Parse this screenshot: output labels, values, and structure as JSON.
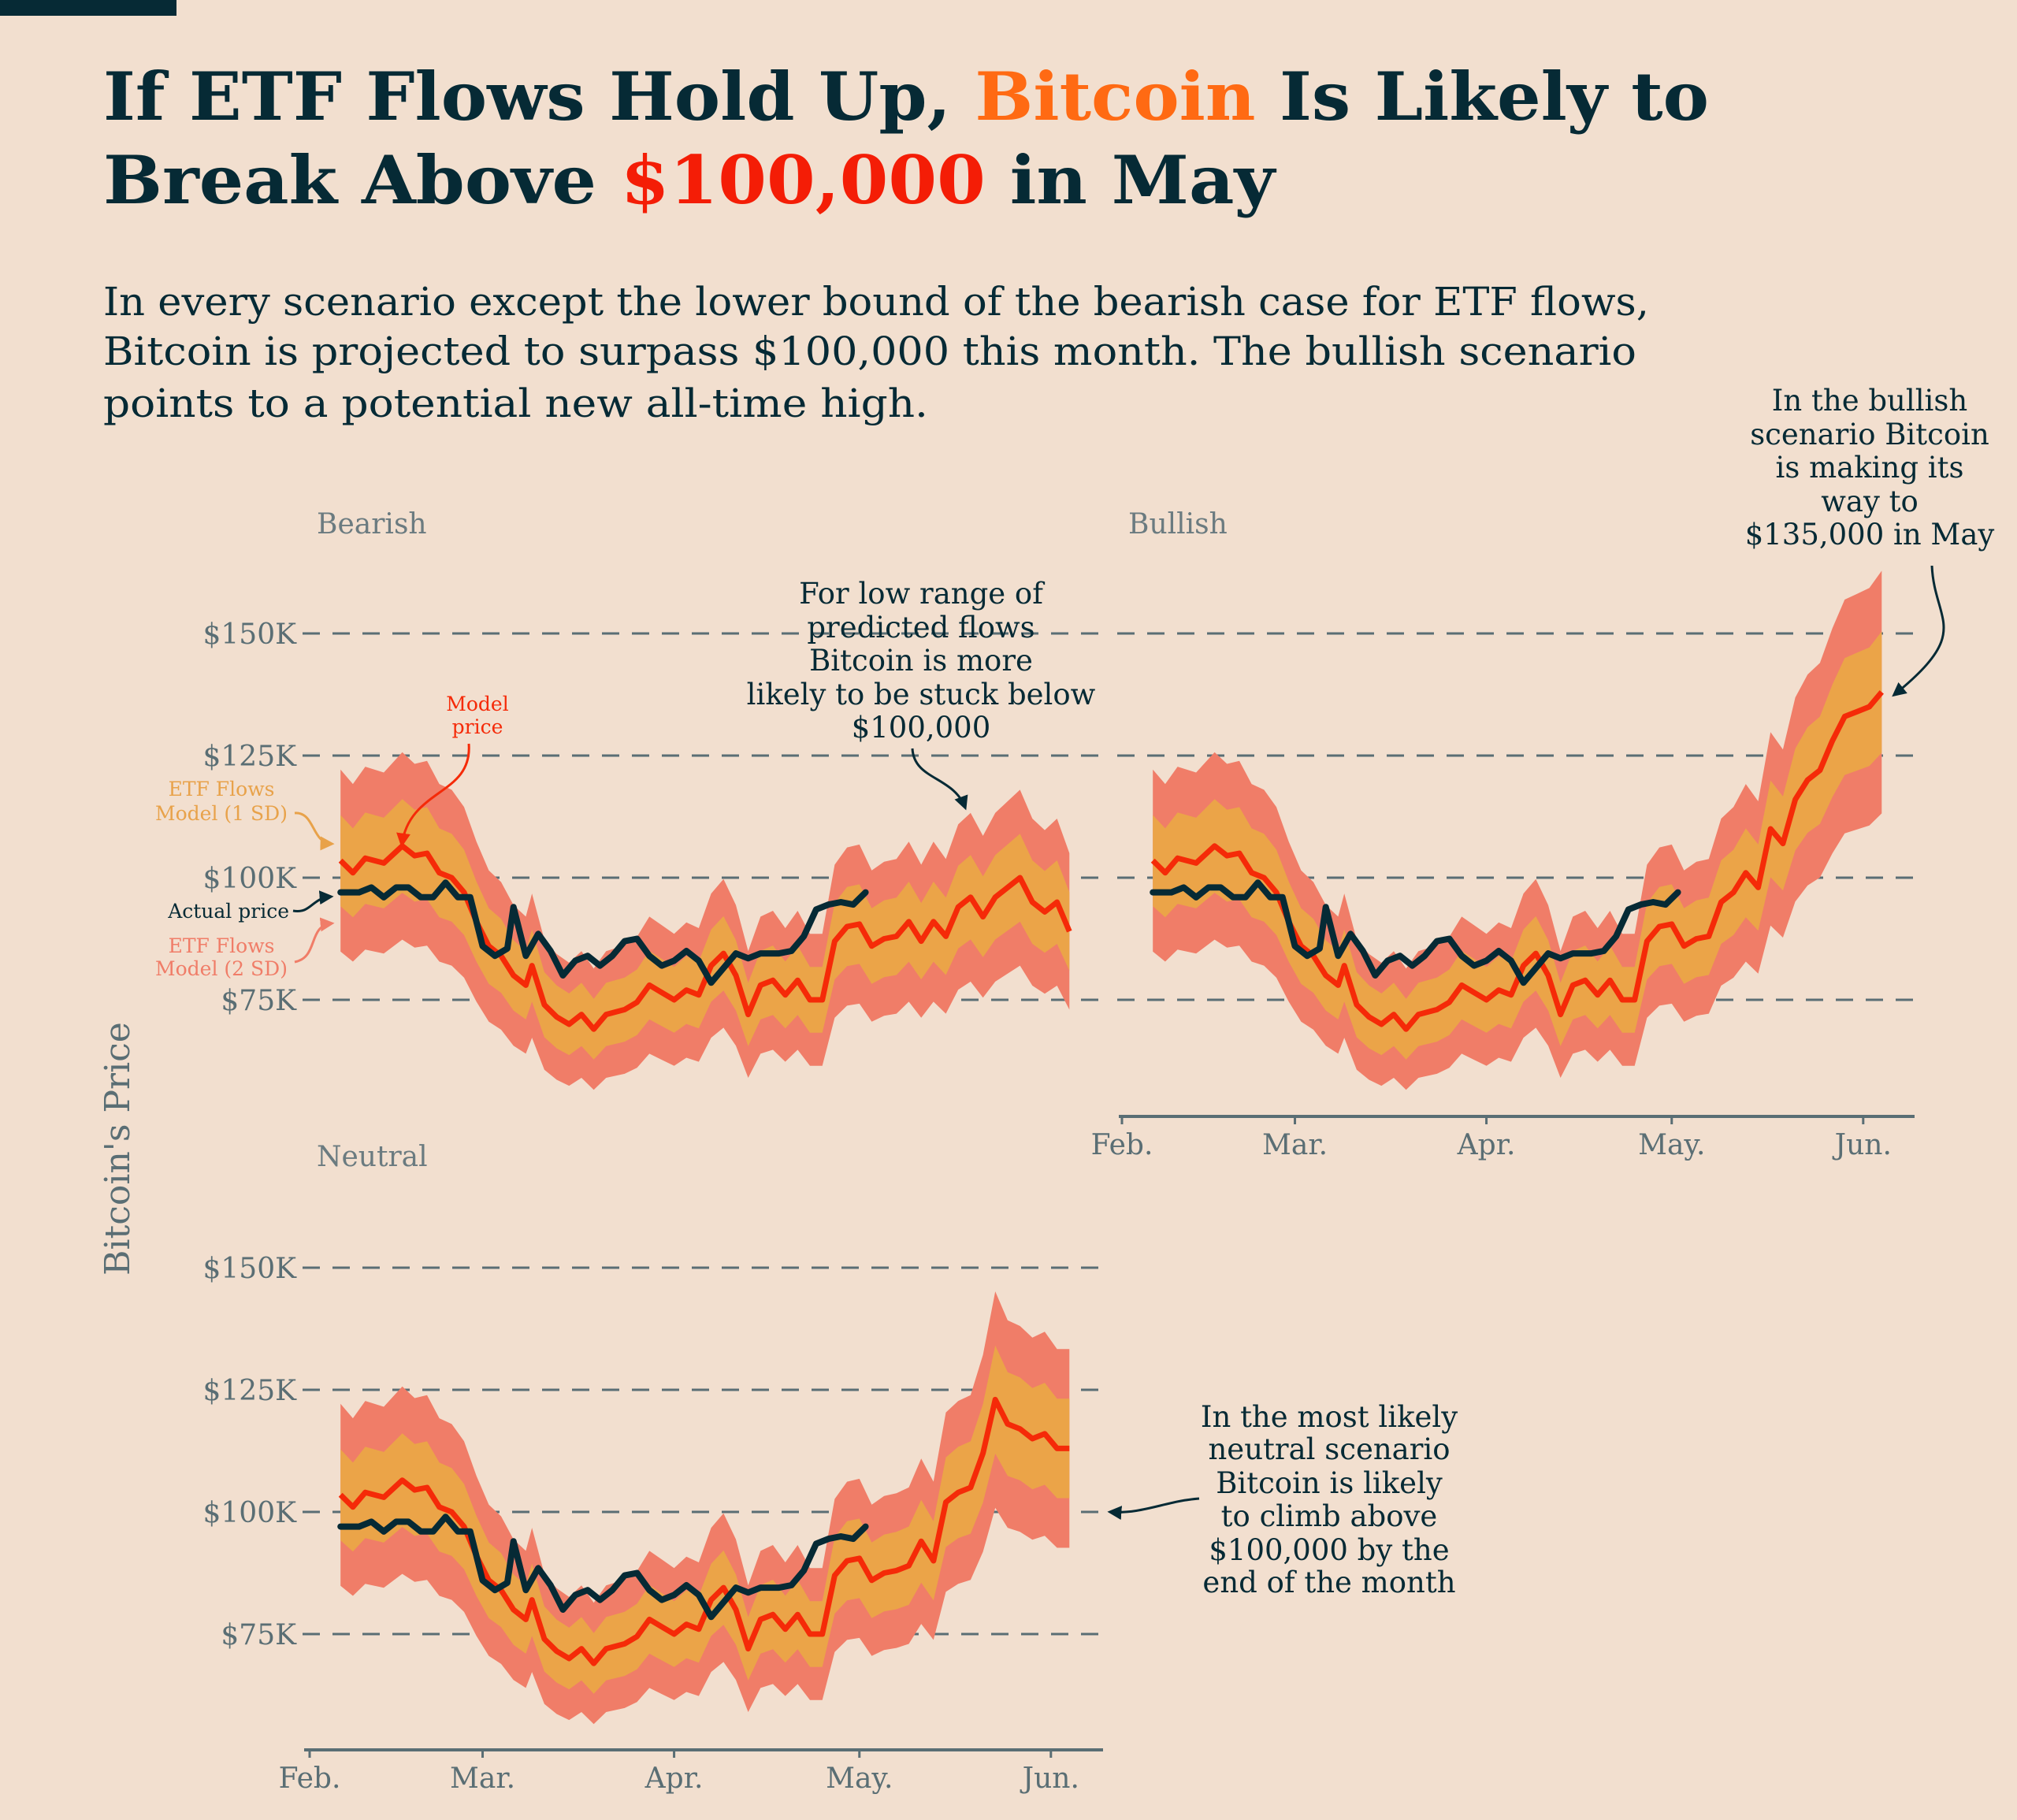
{
  "header": {
    "title_line1": [
      "If ETF Flows Hold Up, ",
      "Bitcoin",
      " Is Likely to"
    ],
    "title_line2": [
      "Break Above ",
      "$100,000",
      " in May"
    ],
    "subtitle": [
      "In every scenario except the lower bound of the bearish case for ETF flows,",
      "Bitcoin is projected to surpass $100,000 this month. The bullish scenario",
      "points to a potential new all-time high."
    ]
  },
  "colors": {
    "background": "#f2dfcf",
    "text_dark": "#062a35",
    "title_bitcoin": "#ff6a13",
    "title_price": "#f41d06",
    "actual_price": "#062a35",
    "model_price": "#f52a08",
    "band_1sd": "#eba448",
    "band_2sd": "#f07d68",
    "grid": "#5a6e74"
  },
  "chart_data": {
    "type": "line",
    "ylabel": "Bitcoin's Price",
    "y_ticks": [
      75,
      100,
      125,
      150
    ],
    "y_tick_labels": [
      "$75K",
      "$100K",
      "$125K",
      "$150K"
    ],
    "ylim": [
      55,
      162
    ],
    "y_units": "thousand USD",
    "x_ticks": [
      "Feb.",
      "Mar.",
      "Apr.",
      "May.",
      "Jun."
    ],
    "grid": "horizontal dashed",
    "legend": {
      "model": "Model price",
      "band_1sd": [
        "ETF Flows",
        "Model (1 SD)"
      ],
      "band_2sd": [
        "ETF Flows",
        "Model (2 SD)"
      ],
      "actual": "Actual price"
    },
    "band_1sd_pct": 9,
    "band_2sd_pct": 18,
    "actual_price": [
      [
        "Feb 6",
        97
      ],
      [
        "Feb 9",
        97
      ],
      [
        "Feb 11",
        98
      ],
      [
        "Feb 13",
        96
      ],
      [
        "Feb 15",
        98
      ],
      [
        "Feb 17",
        98
      ],
      [
        "Feb 19",
        96
      ],
      [
        "Feb 21",
        96
      ],
      [
        "Feb 23",
        99
      ],
      [
        "Feb 25",
        96
      ],
      [
        "Feb 27",
        96
      ],
      [
        "Mar 1",
        86
      ],
      [
        "Mar 3",
        84
      ],
      [
        "Mar 5",
        85.5
      ],
      [
        "Mar 6",
        94
      ],
      [
        "Mar 8",
        84
      ],
      [
        "Mar 10",
        88.5
      ],
      [
        "Mar 12",
        85
      ],
      [
        "Mar 14",
        80
      ],
      [
        "Mar 16",
        83
      ],
      [
        "Mar 18",
        84
      ],
      [
        "Mar 20",
        82
      ],
      [
        "Mar 22",
        84
      ],
      [
        "Mar 24",
        87
      ],
      [
        "Mar 26",
        87.5
      ],
      [
        "Mar 28",
        84
      ],
      [
        "Mar 30",
        82
      ],
      [
        "Apr 1",
        83
      ],
      [
        "Apr 3",
        85
      ],
      [
        "Apr 5",
        83
      ],
      [
        "Apr 7",
        78.5
      ],
      [
        "Apr 9",
        81.5
      ],
      [
        "Apr 11",
        84.5
      ],
      [
        "Apr 13",
        83.5
      ],
      [
        "Apr 15",
        84.5
      ],
      [
        "Apr 18",
        84.5
      ],
      [
        "Apr 20",
        85
      ],
      [
        "Apr 22",
        88
      ],
      [
        "Apr 24",
        93.5
      ],
      [
        "Apr 26",
        94.5
      ],
      [
        "Apr 28",
        95
      ],
      [
        "Apr 30",
        94.5
      ],
      [
        "May 2",
        97
      ]
    ],
    "model_history": [
      [
        "Feb 6",
        103.5
      ],
      [
        "Feb 8",
        101
      ],
      [
        "Feb 10",
        104
      ],
      [
        "Feb 13",
        103
      ],
      [
        "Feb 16",
        106.5
      ],
      [
        "Feb 18",
        104.5
      ],
      [
        "Feb 20",
        105
      ],
      [
        "Feb 22",
        101
      ],
      [
        "Feb 24",
        100
      ],
      [
        "Feb 26",
        97
      ],
      [
        "Feb 28",
        91
      ],
      [
        "Mar 2",
        86
      ],
      [
        "Mar 4",
        84
      ],
      [
        "Mar 6",
        80
      ],
      [
        "Mar 8",
        78
      ],
      [
        "Mar 9",
        82
      ],
      [
        "Mar 11",
        74
      ],
      [
        "Mar 13",
        71.5
      ],
      [
        "Mar 15",
        70
      ],
      [
        "Mar 17",
        72
      ],
      [
        "Mar 19",
        69
      ],
      [
        "Mar 21",
        72
      ],
      [
        "Mar 24",
        73
      ],
      [
        "Mar 26",
        74.5
      ],
      [
        "Mar 28",
        78
      ],
      [
        "Mar 30",
        76.5
      ],
      [
        "Apr 1",
        75
      ],
      [
        "Apr 3",
        77
      ],
      [
        "Apr 5",
        76
      ],
      [
        "Apr 7",
        82
      ],
      [
        "Apr 9",
        84.5
      ],
      [
        "Apr 11",
        80
      ],
      [
        "Apr 13",
        72
      ],
      [
        "Apr 15",
        78
      ],
      [
        "Apr 17",
        79
      ],
      [
        "Apr 19",
        76
      ],
      [
        "Apr 21",
        79
      ],
      [
        "Apr 23",
        75
      ],
      [
        "Apr 25",
        75
      ],
      [
        "Apr 27",
        87
      ],
      [
        "Apr 29",
        90
      ],
      [
        "May 1",
        90.5
      ],
      [
        "May 3",
        86
      ],
      [
        "May 5",
        87.5
      ],
      [
        "May 7",
        88
      ]
    ],
    "panels": [
      {
        "name": "Bearish",
        "forecast": [
          [
            "May 9",
            91
          ],
          [
            "May 11",
            87
          ],
          [
            "May 13",
            91
          ],
          [
            "May 15",
            88
          ],
          [
            "May 17",
            94
          ],
          [
            "May 19",
            96
          ],
          [
            "May 21",
            92
          ],
          [
            "May 23",
            96
          ],
          [
            "May 25",
            98
          ],
          [
            "May 27",
            100
          ],
          [
            "May 29",
            95
          ],
          [
            "May 31",
            93
          ],
          [
            "Jun 2",
            95
          ],
          [
            "Jun 4",
            89
          ]
        ]
      },
      {
        "name": "Bullish",
        "forecast": [
          [
            "May 9",
            95
          ],
          [
            "May 11",
            97
          ],
          [
            "May 13",
            101
          ],
          [
            "May 15",
            98
          ],
          [
            "May 17",
            110
          ],
          [
            "May 19",
            107
          ],
          [
            "May 21",
            116
          ],
          [
            "May 23",
            120
          ],
          [
            "May 25",
            122
          ],
          [
            "May 27",
            128
          ],
          [
            "May 29",
            133
          ],
          [
            "May 31",
            134
          ],
          [
            "Jun 2",
            135
          ],
          [
            "Jun 4",
            138
          ]
        ]
      },
      {
        "name": "Neutral",
        "forecast": [
          [
            "May 9",
            89
          ],
          [
            "May 11",
            94
          ],
          [
            "May 13",
            90
          ],
          [
            "May 15",
            102
          ],
          [
            "May 17",
            104
          ],
          [
            "May 19",
            105
          ],
          [
            "May 21",
            112
          ],
          [
            "May 23",
            123
          ],
          [
            "May 25",
            118
          ],
          [
            "May 27",
            117
          ],
          [
            "May 29",
            115
          ],
          [
            "May 31",
            116
          ],
          [
            "Jun 2",
            113
          ],
          [
            "Jun 4",
            113
          ]
        ]
      }
    ],
    "annotations": {
      "bearish": [
        "For low range of",
        "predicted flows",
        "Bitcoin is more",
        "likely to be stuck below",
        "$100,000"
      ],
      "bullish": [
        "In the bullish",
        "scenario Bitcoin",
        "is making its",
        "way to",
        "$135,000 in May"
      ],
      "neutral": [
        "In the most likely",
        "neutral scenario",
        "Bitcoin is likely",
        "to climb above",
        "$100,000 by the",
        "end of the month"
      ],
      "model_price": [
        "Model",
        "price"
      ]
    }
  }
}
